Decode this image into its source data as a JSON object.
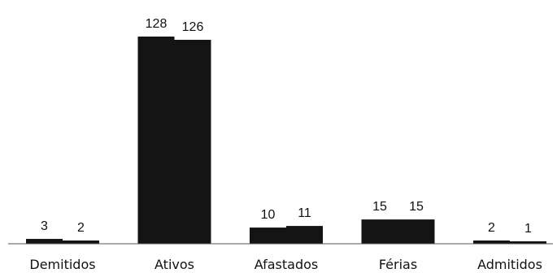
{
  "chart_data": {
    "type": "bar",
    "categories": [
      "Demitidos",
      "Ativos",
      "Afastados",
      "Férias",
      "Admitidos"
    ],
    "series": [
      {
        "values": [
          3,
          128,
          10,
          15,
          2
        ]
      },
      {
        "values": [
          2,
          126,
          11,
          15,
          1
        ]
      }
    ],
    "data_labels": [
      [
        "3",
        "128",
        "10",
        "15",
        "2"
      ],
      [
        "2",
        "126",
        "11",
        "15",
        "1"
      ]
    ],
    "ylim": [
      0,
      130
    ],
    "grid": false,
    "legend": "none",
    "colors": {
      "bar": "#141414",
      "axis": "#555555",
      "label": "#111111"
    }
  }
}
